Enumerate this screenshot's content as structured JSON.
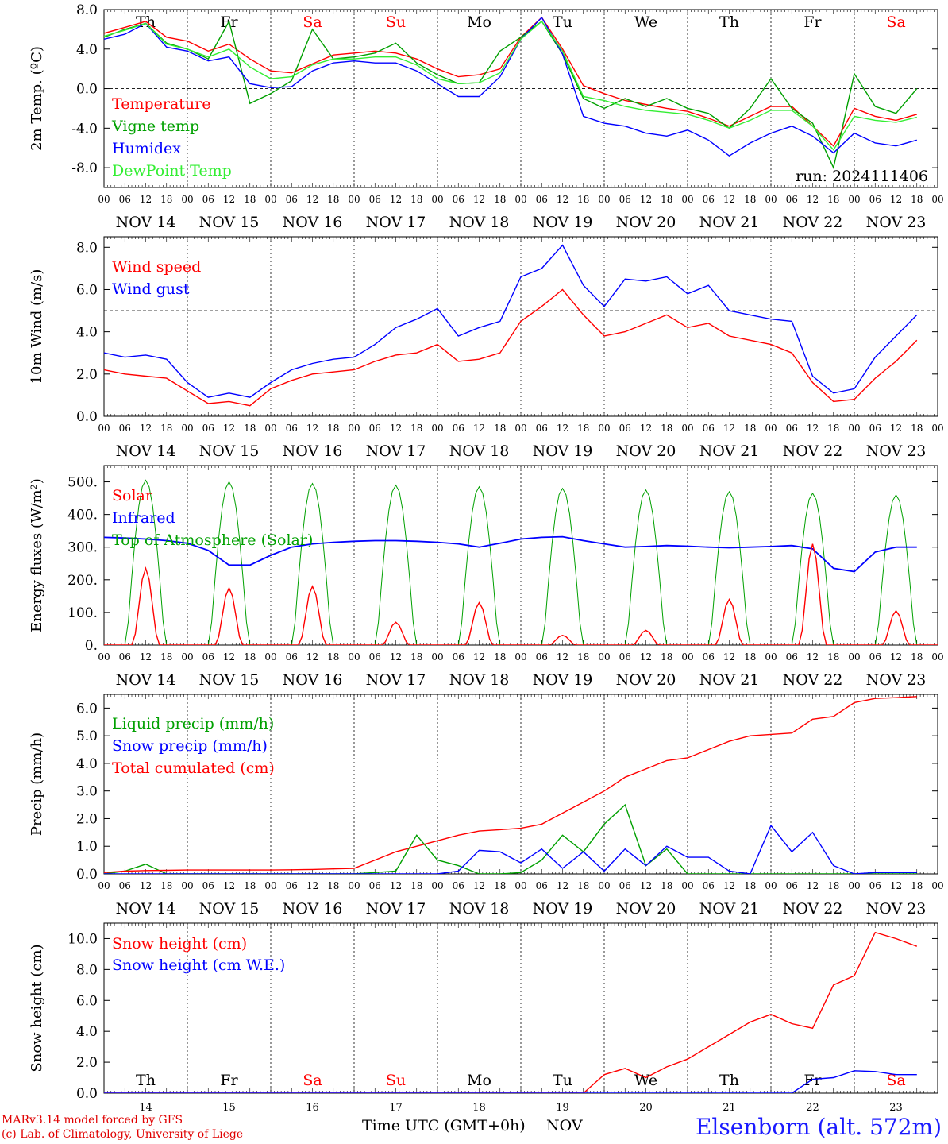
{
  "colors": {
    "red": "#ff0000",
    "green": "#00a000",
    "blue": "#0000ff",
    "light_green": "#33ee33",
    "black": "#000000"
  },
  "chart_data": [
    {
      "type": "line",
      "ylabel": "2m Temp. (ºC)",
      "ylim": [
        -10,
        8
      ],
      "yticks": [
        "8.0",
        "4.0",
        "0.0",
        "-4.0",
        "-8.0"
      ],
      "ytick_values": [
        8,
        4,
        0,
        -4,
        -8
      ],
      "reference_line": 0,
      "day_labels": [
        {
          "text": "Th",
          "color": "#000000"
        },
        {
          "text": "Fr",
          "color": "#000000"
        },
        {
          "text": "Sa",
          "color": "#ff0000"
        },
        {
          "text": "Su",
          "color": "#ff0000"
        },
        {
          "text": "Mo",
          "color": "#000000"
        },
        {
          "text": "Tu",
          "color": "#000000"
        },
        {
          "text": "We",
          "color": "#000000"
        },
        {
          "text": "Th",
          "color": "#000000"
        },
        {
          "text": "Fr",
          "color": "#000000"
        },
        {
          "text": "Sa",
          "color": "#ff0000"
        }
      ],
      "annotation": "run: 2024111406",
      "x_hours": [
        0,
        6,
        12,
        18,
        24,
        30,
        36,
        42,
        48,
        54,
        60,
        66,
        72,
        78,
        84,
        90,
        96,
        102,
        108,
        114,
        120,
        126,
        132,
        138,
        144,
        150,
        156,
        162,
        168,
        174,
        180,
        186,
        192,
        198,
        204,
        210,
        216,
        222,
        228,
        234
      ],
      "series": [
        {
          "name": "Temperature",
          "color": "#ff0000",
          "values": [
            5.6,
            6.2,
            6.8,
            5.2,
            4.8,
            3.8,
            4.5,
            3.0,
            1.8,
            1.6,
            2.5,
            3.4,
            3.6,
            3.8,
            3.6,
            3.0,
            2.0,
            1.2,
            1.4,
            2.0,
            5.2,
            7.2,
            4.0,
            0.3,
            -0.5,
            -1.2,
            -1.6,
            -2.0,
            -2.3,
            -3.0,
            -3.8,
            -2.8,
            -1.8,
            -1.8,
            -3.8,
            -5.8,
            -2.0,
            -2.8,
            -3.2,
            -2.6
          ]
        },
        {
          "name": "Vigne temp",
          "color": "#00a000",
          "values": [
            5.2,
            6.0,
            6.6,
            4.6,
            4.0,
            3.0,
            6.8,
            -1.5,
            -0.5,
            0.8,
            6.0,
            3.0,
            3.2,
            3.6,
            4.6,
            2.6,
            1.4,
            0.5,
            0.6,
            3.8,
            5.2,
            6.8,
            3.5,
            -1.0,
            -2.0,
            -1.0,
            -1.8,
            -1.0,
            -2.0,
            -2.5,
            -4.0,
            -2.0,
            1.0,
            -2.0,
            -3.5,
            -8.0,
            1.5,
            -1.8,
            -2.5,
            0.0
          ]
        },
        {
          "name": "Humidex",
          "color": "#0000ff",
          "values": [
            5.0,
            5.5,
            6.6,
            4.2,
            3.8,
            2.8,
            3.2,
            0.5,
            0.1,
            0.2,
            1.8,
            2.6,
            2.8,
            2.6,
            2.6,
            1.8,
            0.5,
            -0.8,
            -0.8,
            1.2,
            5.0,
            7.2,
            3.5,
            -2.8,
            -3.5,
            -3.8,
            -4.5,
            -4.8,
            -4.2,
            -5.2,
            -6.8,
            -5.5,
            -4.5,
            -3.8,
            -4.8,
            -6.5,
            -4.5,
            -5.5,
            -5.8,
            -5.2
          ]
        },
        {
          "name": "DewPoint Temp",
          "color": "#33ee33",
          "values": [
            5.3,
            5.9,
            6.6,
            4.5,
            4.0,
            3.2,
            4.0,
            2.2,
            1.0,
            1.2,
            2.4,
            3.0,
            3.0,
            3.2,
            3.2,
            2.4,
            1.0,
            0.5,
            0.6,
            1.6,
            5.0,
            6.8,
            3.8,
            -0.8,
            -1.2,
            -1.8,
            -2.2,
            -2.4,
            -2.6,
            -3.2,
            -4.0,
            -3.2,
            -2.2,
            -2.2,
            -3.8,
            -6.2,
            -2.8,
            -3.2,
            -3.4,
            -2.9
          ]
        }
      ]
    },
    {
      "type": "line",
      "ylabel": "10m Wind (m/s)",
      "ylim": [
        0,
        8.5
      ],
      "yticks": [
        "8.0",
        "6.0",
        "4.0",
        "2.0",
        "0.0"
      ],
      "ytick_values": [
        8,
        6,
        4,
        2,
        0
      ],
      "reference_line": 5,
      "x_hours": [
        0,
        6,
        12,
        18,
        24,
        30,
        36,
        42,
        48,
        54,
        60,
        66,
        72,
        78,
        84,
        90,
        96,
        102,
        108,
        114,
        120,
        126,
        132,
        138,
        144,
        150,
        156,
        162,
        168,
        174,
        180,
        186,
        192,
        198,
        204,
        210,
        216,
        222,
        228,
        234
      ],
      "series": [
        {
          "name": "Wind speed",
          "color": "#ff0000",
          "values": [
            2.2,
            2.0,
            1.9,
            1.8,
            1.2,
            0.6,
            0.7,
            0.5,
            1.3,
            1.7,
            2.0,
            2.1,
            2.2,
            2.6,
            2.9,
            3.0,
            3.4,
            2.6,
            2.7,
            3.0,
            4.5,
            5.2,
            6.0,
            4.8,
            3.8,
            4.0,
            4.4,
            4.8,
            4.2,
            4.4,
            3.8,
            3.6,
            3.4,
            3.0,
            1.6,
            0.7,
            0.8,
            1.8,
            2.6,
            3.6
          ]
        },
        {
          "name": "Wind gust",
          "color": "#0000ff",
          "values": [
            3.0,
            2.8,
            2.9,
            2.7,
            1.6,
            0.9,
            1.1,
            0.9,
            1.6,
            2.2,
            2.5,
            2.7,
            2.8,
            3.4,
            4.2,
            4.6,
            5.1,
            3.8,
            4.2,
            4.5,
            6.6,
            7.0,
            8.1,
            6.2,
            5.2,
            6.5,
            6.4,
            6.6,
            5.8,
            6.2,
            5.0,
            4.8,
            4.6,
            4.5,
            1.9,
            1.1,
            1.3,
            2.8,
            3.8,
            4.8
          ]
        }
      ]
    },
    {
      "type": "line",
      "ylabel": "Energy fluxes (W/m²)",
      "ylim": [
        0,
        550
      ],
      "yticks": [
        "500.",
        "400.",
        "300.",
        "200.",
        "100.",
        "0."
      ],
      "ytick_values": [
        500,
        400,
        300,
        200,
        100,
        0
      ],
      "solar_peaks": [
        235,
        175,
        180,
        70,
        130,
        30,
        45,
        140,
        310,
        105
      ],
      "toa_peaks": [
        505,
        500,
        495,
        490,
        485,
        480,
        475,
        470,
        465,
        460
      ],
      "x_hours": [
        0,
        6,
        12,
        18,
        24,
        30,
        36,
        42,
        48,
        54,
        60,
        66,
        72,
        78,
        84,
        90,
        96,
        102,
        108,
        114,
        120,
        126,
        132,
        138,
        144,
        150,
        156,
        162,
        168,
        174,
        180,
        186,
        192,
        198,
        204,
        210,
        216,
        222,
        228,
        234
      ],
      "infrared_values": [
        330,
        328,
        325,
        320,
        312,
        290,
        245,
        245,
        275,
        300,
        310,
        315,
        318,
        320,
        320,
        318,
        315,
        310,
        300,
        312,
        325,
        330,
        332,
        320,
        310,
        300,
        302,
        305,
        303,
        300,
        298,
        300,
        302,
        305,
        295,
        235,
        225,
        285,
        300,
        300
      ],
      "series": [
        {
          "name": "Solar",
          "color": "#ff0000"
        },
        {
          "name": "Infrared",
          "color": "#0000ff"
        },
        {
          "name": "Top of Atmosphere (Solar)",
          "color": "#00a000"
        }
      ]
    },
    {
      "type": "line",
      "ylabel": "Precip (mm/h)",
      "ylim": [
        0,
        6.5
      ],
      "yticks": [
        "6.0",
        "5.0",
        "4.0",
        "3.0",
        "2.0",
        "1.0",
        "0.0"
      ],
      "ytick_values": [
        6,
        5,
        4,
        3,
        2,
        1,
        0
      ],
      "x_hours": [
        0,
        6,
        12,
        18,
        24,
        30,
        36,
        42,
        48,
        54,
        60,
        66,
        72,
        78,
        84,
        90,
        96,
        102,
        108,
        114,
        120,
        126,
        132,
        138,
        144,
        150,
        156,
        162,
        168,
        174,
        180,
        186,
        192,
        198,
        204,
        210,
        216,
        222,
        228,
        234
      ],
      "series": [
        {
          "name": "Liquid precip (mm/h)",
          "color": "#00a000",
          "values": [
            0,
            0.1,
            0.35,
            0,
            0,
            0,
            0,
            0,
            0,
            0,
            0,
            0,
            0,
            0.05,
            0.1,
            1.4,
            0.5,
            0.3,
            0,
            0,
            0.05,
            0.5,
            1.4,
            0.8,
            1.8,
            2.5,
            0.3,
            0.9,
            0,
            0,
            0,
            0,
            0,
            0,
            0,
            0,
            0,
            0,
            0,
            0
          ]
        },
        {
          "name": "Snow precip (mm/h)",
          "color": "#0000ff",
          "values": [
            0,
            0,
            0,
            0,
            0,
            0,
            0,
            0,
            0,
            0,
            0,
            0,
            0,
            0,
            0,
            0,
            0,
            0.1,
            0.85,
            0.8,
            0.4,
            0.9,
            0.2,
            0.8,
            0.1,
            0.9,
            0.3,
            1.0,
            0.6,
            0.6,
            0.1,
            0,
            1.75,
            0.8,
            1.5,
            0.3,
            0,
            0.05,
            0.05,
            0.05
          ]
        },
        {
          "name": "Total cumulated (cm)",
          "color": "#ff0000",
          "values": [
            0.05,
            0.1,
            0.12,
            0.13,
            0.14,
            0.14,
            0.14,
            0.14,
            0.14,
            0.15,
            0.16,
            0.18,
            0.2,
            0.5,
            0.8,
            1.0,
            1.2,
            1.4,
            1.55,
            1.6,
            1.65,
            1.8,
            2.2,
            2.6,
            3.0,
            3.5,
            3.8,
            4.1,
            4.2,
            4.5,
            4.8,
            5.0,
            5.05,
            5.1,
            5.6,
            5.7,
            6.2,
            6.35,
            6.38,
            6.42
          ]
        }
      ]
    },
    {
      "type": "line",
      "ylabel": "Snow height (cm)",
      "xlabel": "Time UTC (GMT+0h)",
      "xlabel_suffix": "NOV",
      "ylim": [
        0,
        11
      ],
      "yticks": [
        "10.0",
        "8.0",
        "6.0",
        "4.0",
        "2.0",
        "0.0"
      ],
      "ytick_values": [
        10,
        8,
        6,
        4,
        2,
        0
      ],
      "day_numbers": [
        "14",
        "15",
        "16",
        "17",
        "18",
        "19",
        "20",
        "21",
        "22",
        "23"
      ],
      "x_hours": [
        0,
        6,
        12,
        18,
        24,
        30,
        36,
        42,
        48,
        54,
        60,
        66,
        72,
        78,
        84,
        90,
        96,
        102,
        108,
        114,
        120,
        126,
        132,
        138,
        144,
        150,
        156,
        162,
        168,
        174,
        180,
        186,
        192,
        198,
        204,
        210,
        216,
        222,
        228,
        234
      ],
      "series": [
        {
          "name": "Snow height (cm)",
          "color": "#ff0000",
          "values": [
            0,
            0,
            0,
            0,
            0,
            0,
            0,
            0,
            0,
            0,
            0,
            0,
            0,
            0,
            0,
            0,
            0,
            0,
            0,
            0,
            0,
            0,
            0,
            0,
            1.2,
            1.6,
            1.0,
            1.7,
            2.2,
            3.0,
            3.8,
            4.6,
            5.1,
            4.5,
            4.2,
            7.0,
            7.6,
            10.4,
            10.0,
            9.5
          ]
        },
        {
          "name": "Snow height (cm W.E.)",
          "color": "#0000ff",
          "values": [
            0,
            0,
            0,
            0,
            0,
            0,
            0,
            0,
            0,
            0,
            0,
            0,
            0,
            0,
            0,
            0,
            0,
            0,
            0,
            0,
            0,
            0,
            0,
            0,
            0,
            0,
            0,
            0,
            0,
            0,
            0,
            0,
            0,
            0,
            0.9,
            1.0,
            1.45,
            1.4,
            1.2,
            1.2
          ]
        }
      ]
    }
  ],
  "x_axis": {
    "hour_labels": [
      "00",
      "06",
      "12",
      "18"
    ],
    "date_labels": [
      "NOV 14",
      "NOV 15",
      "NOV 16",
      "NOV 17",
      "NOV 18",
      "NOV 19",
      "NOV 20",
      "NOV 21",
      "NOV 22",
      "NOV 23"
    ],
    "last_hour_label": "00"
  },
  "footer": {
    "model_line": "MARv3.14 model forced by GFS",
    "credit_line": "(c) Lab. of Climatology, University of Liege",
    "station": "Elsenborn (alt. 572m)"
  }
}
